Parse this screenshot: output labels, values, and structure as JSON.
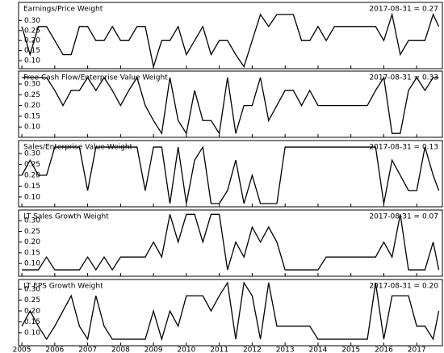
{
  "chart_data": [
    {
      "type": "line",
      "title": "Earnings/Price Weight",
      "annotation": "2017-08-31 = 0.27",
      "x": [
        2005,
        2005.25,
        2005.5,
        2005.75,
        2006,
        2006.25,
        2006.5,
        2006.75,
        2007,
        2007.25,
        2007.5,
        2007.75,
        2008,
        2008.25,
        2008.5,
        2008.75,
        2009,
        2009.25,
        2009.5,
        2009.75,
        2010,
        2010.25,
        2010.5,
        2010.75,
        2011,
        2011.25,
        2011.5,
        2011.75,
        2012,
        2012.25,
        2012.5,
        2012.75,
        2013,
        2013.25,
        2013.5,
        2013.75,
        2014,
        2014.25,
        2014.5,
        2014.75,
        2015,
        2015.25,
        2015.5,
        2015.75,
        2016,
        2016.25,
        2016.5,
        2016.75,
        2017,
        2017.25,
        2017.5,
        2017.67
      ],
      "series": [
        {
          "name": "Earnings/Price Weight",
          "color": "#000000",
          "values": [
            0.27,
            0.13,
            0.27,
            0.27,
            0.2,
            0.13,
            0.13,
            0.27,
            0.27,
            0.2,
            0.2,
            0.27,
            0.2,
            0.2,
            0.27,
            0.27,
            0.07,
            0.2,
            0.2,
            0.27,
            0.13,
            0.2,
            0.27,
            0.13,
            0.2,
            0.2,
            0.13,
            0.07,
            0.2,
            0.33,
            0.27,
            0.33,
            0.33,
            0.33,
            0.2,
            0.2,
            0.27,
            0.2,
            0.27,
            0.27,
            0.27,
            0.27,
            0.27,
            0.27,
            0.2,
            0.33,
            0.13,
            0.2,
            0.2,
            0.2,
            0.33,
            0.27
          ]
        }
      ],
      "xlim": [
        2004.9,
        2017.78
      ],
      "ylim": [
        0.06,
        0.39
      ],
      "yticks": [
        {
          "value": 0.1,
          "label": "0.10"
        },
        {
          "value": 0.15,
          "label": "0.15"
        },
        {
          "value": 0.2,
          "label": "0.20"
        },
        {
          "value": 0.25,
          "label": "0.25"
        },
        {
          "value": 0.3,
          "label": "0.30"
        }
      ]
    },
    {
      "type": "line",
      "title": "Free Cash Flow/Enterprise Value Weight",
      "annotation": "2017-08-31 = 0.33",
      "x": [
        2005,
        2005.25,
        2005.5,
        2005.75,
        2006,
        2006.25,
        2006.5,
        2006.75,
        2007,
        2007.25,
        2007.5,
        2007.75,
        2008,
        2008.25,
        2008.5,
        2008.75,
        2009,
        2009.25,
        2009.5,
        2009.75,
        2010,
        2010.25,
        2010.5,
        2010.75,
        2011,
        2011.25,
        2011.5,
        2011.75,
        2012,
        2012.25,
        2012.5,
        2012.75,
        2013,
        2013.25,
        2013.5,
        2013.75,
        2014,
        2014.25,
        2014.5,
        2014.75,
        2015,
        2015.25,
        2015.5,
        2015.75,
        2016,
        2016.25,
        2016.5,
        2016.75,
        2017,
        2017.25,
        2017.5,
        2017.67
      ],
      "series": [
        {
          "name": "Free Cash Flow/Enterprise Value Weight",
          "color": "#000000",
          "values": [
            0.33,
            0.33,
            0.33,
            0.33,
            0.27,
            0.2,
            0.27,
            0.27,
            0.33,
            0.27,
            0.33,
            0.27,
            0.2,
            0.27,
            0.33,
            0.2,
            0.13,
            0.07,
            0.33,
            0.13,
            0.07,
            0.27,
            0.13,
            0.13,
            0.07,
            0.33,
            0.07,
            0.2,
            0.2,
            0.33,
            0.13,
            0.2,
            0.27,
            0.27,
            0.2,
            0.27,
            0.2,
            0.2,
            0.2,
            0.2,
            0.2,
            0.2,
            0.2,
            0.27,
            0.33,
            0.07,
            0.07,
            0.27,
            0.33,
            0.27,
            0.33,
            0.33
          ]
        }
      ],
      "xlim": [
        2004.9,
        2017.78
      ],
      "ylim": [
        0.052,
        0.36
      ],
      "yticks": [
        {
          "value": 0.1,
          "label": "0.10"
        },
        {
          "value": 0.15,
          "label": "0.15"
        },
        {
          "value": 0.2,
          "label": "0.20"
        },
        {
          "value": 0.25,
          "label": "0.25"
        },
        {
          "value": 0.3,
          "label": "0.30"
        }
      ]
    },
    {
      "type": "line",
      "title": "Sales/Enterprise Value Weight",
      "annotation": "2017-08-31 = 0.13",
      "x": [
        2005,
        2005.25,
        2005.5,
        2005.75,
        2006,
        2006.25,
        2006.5,
        2006.75,
        2007,
        2007.25,
        2007.5,
        2007.75,
        2008,
        2008.25,
        2008.5,
        2008.75,
        2009,
        2009.25,
        2009.5,
        2009.75,
        2010,
        2010.25,
        2010.5,
        2010.75,
        2011,
        2011.25,
        2011.5,
        2011.75,
        2012,
        2012.25,
        2012.5,
        2012.75,
        2013,
        2013.25,
        2013.5,
        2013.75,
        2014,
        2014.25,
        2014.5,
        2014.75,
        2015,
        2015.25,
        2015.5,
        2015.75,
        2016,
        2016.25,
        2016.5,
        2016.75,
        2017,
        2017.25,
        2017.5,
        2017.67
      ],
      "series": [
        {
          "name": "Sales/Enterprise Value Weight",
          "color": "#000000",
          "values": [
            0.2,
            0.27,
            0.2,
            0.2,
            0.33,
            0.33,
            0.33,
            0.33,
            0.13,
            0.33,
            0.33,
            0.33,
            0.33,
            0.33,
            0.33,
            0.13,
            0.33,
            0.33,
            0.07,
            0.33,
            0.07,
            0.27,
            0.33,
            0.07,
            0.07,
            0.13,
            0.27,
            0.07,
            0.2,
            0.07,
            0.07,
            0.07,
            0.33,
            0.33,
            0.33,
            0.33,
            0.33,
            0.33,
            0.33,
            0.33,
            0.33,
            0.33,
            0.33,
            0.33,
            0.07,
            0.27,
            0.2,
            0.13,
            0.13,
            0.33,
            0.2,
            0.13
          ]
        }
      ],
      "xlim": [
        2004.9,
        2017.78
      ],
      "ylim": [
        0.055,
        0.36
      ],
      "yticks": [
        {
          "value": 0.1,
          "label": "0.10"
        },
        {
          "value": 0.15,
          "label": "0.15"
        },
        {
          "value": 0.2,
          "label": "0.20"
        },
        {
          "value": 0.25,
          "label": "0.25"
        },
        {
          "value": 0.3,
          "label": "0.30"
        }
      ]
    },
    {
      "type": "line",
      "title": "LT Sales Growth Weight",
      "annotation": "2017-08-31 = 0.07",
      "x": [
        2005,
        2005.25,
        2005.5,
        2005.75,
        2006,
        2006.25,
        2006.5,
        2006.75,
        2007,
        2007.25,
        2007.5,
        2007.75,
        2008,
        2008.25,
        2008.5,
        2008.75,
        2009,
        2009.25,
        2009.5,
        2009.75,
        2010,
        2010.25,
        2010.5,
        2010.75,
        2011,
        2011.25,
        2011.5,
        2011.75,
        2012,
        2012.25,
        2012.5,
        2012.75,
        2013,
        2013.25,
        2013.5,
        2013.75,
        2014,
        2014.25,
        2014.5,
        2014.75,
        2015,
        2015.25,
        2015.5,
        2015.75,
        2016,
        2016.25,
        2016.5,
        2016.75,
        2017,
        2017.25,
        2017.5,
        2017.67
      ],
      "series": [
        {
          "name": "LT Sales Growth Weight",
          "color": "#000000",
          "values": [
            0.07,
            0.07,
            0.07,
            0.13,
            0.07,
            0.07,
            0.07,
            0.07,
            0.13,
            0.07,
            0.13,
            0.07,
            0.13,
            0.13,
            0.13,
            0.13,
            0.2,
            0.13,
            0.33,
            0.2,
            0.33,
            0.33,
            0.2,
            0.33,
            0.33,
            0.07,
            0.2,
            0.13,
            0.27,
            0.2,
            0.27,
            0.2,
            0.07,
            0.07,
            0.07,
            0.07,
            0.07,
            0.13,
            0.13,
            0.13,
            0.13,
            0.13,
            0.13,
            0.13,
            0.2,
            0.13,
            0.33,
            0.07,
            0.07,
            0.07,
            0.2,
            0.07
          ]
        }
      ],
      "xlim": [
        2004.9,
        2017.78
      ],
      "ylim": [
        0.04,
        0.35
      ],
      "yticks": [
        {
          "value": 0.1,
          "label": "0.10"
        },
        {
          "value": 0.15,
          "label": "0.15"
        },
        {
          "value": 0.2,
          "label": "0.20"
        },
        {
          "value": 0.25,
          "label": "0.25"
        },
        {
          "value": 0.3,
          "label": "0.30"
        }
      ]
    },
    {
      "type": "line",
      "title": "LT EPS Growth Weight",
      "annotation": "2017-08-31 = 0.20",
      "x": [
        2005,
        2005.25,
        2005.5,
        2005.75,
        2006,
        2006.25,
        2006.5,
        2006.75,
        2007,
        2007.25,
        2007.5,
        2007.75,
        2008,
        2008.25,
        2008.5,
        2008.75,
        2009,
        2009.25,
        2009.5,
        2009.75,
        2010,
        2010.25,
        2010.5,
        2010.75,
        2011,
        2011.25,
        2011.5,
        2011.75,
        2012,
        2012.25,
        2012.5,
        2012.75,
        2013,
        2013.25,
        2013.5,
        2013.75,
        2014,
        2014.25,
        2014.5,
        2014.75,
        2015,
        2015.25,
        2015.5,
        2015.75,
        2016,
        2016.25,
        2016.5,
        2016.75,
        2017,
        2017.25,
        2017.5,
        2017.67
      ],
      "series": [
        {
          "name": "LT EPS Growth Weight",
          "color": "#000000",
          "values": [
            0.13,
            0.2,
            0.13,
            0.07,
            0.13,
            0.2,
            0.27,
            0.13,
            0.07,
            0.27,
            0.13,
            0.07,
            0.07,
            0.07,
            0.07,
            0.07,
            0.2,
            0.07,
            0.2,
            0.13,
            0.27,
            0.27,
            0.27,
            0.2,
            0.27,
            0.33,
            0.07,
            0.33,
            0.27,
            0.07,
            0.33,
            0.13,
            0.13,
            0.13,
            0.13,
            0.13,
            0.07,
            0.07,
            0.07,
            0.07,
            0.07,
            0.07,
            0.07,
            0.33,
            0.07,
            0.27,
            0.27,
            0.27,
            0.13,
            0.13,
            0.07,
            0.2
          ]
        }
      ],
      "xlim": [
        2004.9,
        2017.78
      ],
      "ylim": [
        0.04,
        0.345
      ],
      "yticks": [
        {
          "value": 0.1,
          "label": "0.10"
        },
        {
          "value": 0.15,
          "label": "0.15"
        },
        {
          "value": 0.2,
          "label": "0.20"
        },
        {
          "value": 0.25,
          "label": "0.25"
        },
        {
          "value": 0.3,
          "label": "0.30"
        }
      ],
      "xticks": [
        2005,
        2006,
        2007,
        2008,
        2009,
        2010,
        2011,
        2012,
        2013,
        2014,
        2015,
        2016,
        2017
      ]
    }
  ]
}
